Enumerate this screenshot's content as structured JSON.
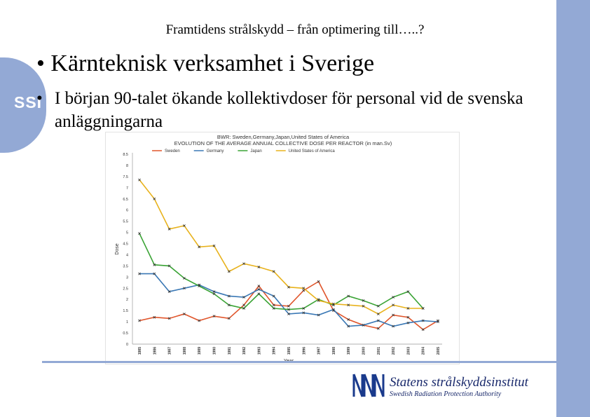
{
  "header": {
    "title": "Framtidens strålskydd – från optimering till…..?"
  },
  "brand": {
    "badge": "SSI",
    "logo_name": "Statens strålskyddsinstitut",
    "logo_sub": "Swedish Radiation Protection Authority",
    "accent": "#93a9d5",
    "logo_color": "#1a2a6c"
  },
  "bullets": [
    {
      "marker": "•",
      "text": "Kärnteknisk verksamhet i Sverige"
    },
    {
      "marker": "•",
      "text": "I början 90-talet ökande kollektivdoser för personal vid de svenska anläggningarna"
    }
  ],
  "chart_data": {
    "type": "line",
    "title": "BWR: Sweden,Germany,Japan,United States of America",
    "subtitle": "EVOLUTION OF THE AVERAGE ANNUAL COLLECTIVE DOSE PER REACTOR (in man.Sv)",
    "xlabel": "Year",
    "ylabel": "Dose",
    "ylim": [
      0,
      8.5
    ],
    "yticks": [
      "0",
      "0.5",
      "1",
      "1.5",
      "2",
      "2.5",
      "3",
      "3.5",
      "4",
      "4.5",
      "5",
      "5.5",
      "6",
      "6.5",
      "7",
      "7.5",
      "8",
      "8.5"
    ],
    "x": [
      "1985",
      "1986",
      "1987",
      "1988",
      "1989",
      "1990",
      "1991",
      "1992",
      "1993",
      "1994",
      "1995",
      "1996",
      "1997",
      "1998",
      "1999",
      "2000",
      "2001",
      "2002",
      "2003",
      "2004",
      "2005"
    ],
    "legend_position": "top",
    "series": [
      {
        "name": "Sweden",
        "color": "#e0552b",
        "values": [
          1.05,
          1.2,
          1.15,
          1.35,
          1.05,
          1.25,
          1.15,
          1.75,
          2.6,
          1.75,
          1.7,
          2.4,
          2.8,
          1.5,
          1.1,
          0.85,
          0.7,
          1.3,
          1.2,
          0.65,
          1.05
        ]
      },
      {
        "name": "Germany",
        "color": "#3a78b5",
        "values": [
          3.15,
          3.15,
          2.35,
          2.5,
          2.65,
          2.35,
          2.15,
          2.1,
          2.45,
          2.15,
          1.35,
          1.4,
          1.3,
          1.55,
          0.8,
          0.85,
          1.05,
          0.8,
          0.95,
          1.05,
          1.0
        ]
      },
      {
        "name": "Japan",
        "color": "#3aa335",
        "values": [
          4.95,
          3.55,
          3.5,
          2.95,
          2.6,
          2.25,
          1.75,
          1.6,
          2.25,
          1.6,
          1.55,
          1.6,
          2.0,
          1.75,
          2.15,
          1.95,
          1.7,
          2.1,
          2.35,
          1.6,
          null
        ]
      },
      {
        "name": "United States of America",
        "color": "#e8b21c",
        "values": [
          7.35,
          6.5,
          5.15,
          5.3,
          4.35,
          4.4,
          3.25,
          3.6,
          3.45,
          3.25,
          2.55,
          2.5,
          1.95,
          1.8,
          1.75,
          1.7,
          1.35,
          1.75,
          1.6,
          1.6,
          null
        ]
      }
    ]
  }
}
